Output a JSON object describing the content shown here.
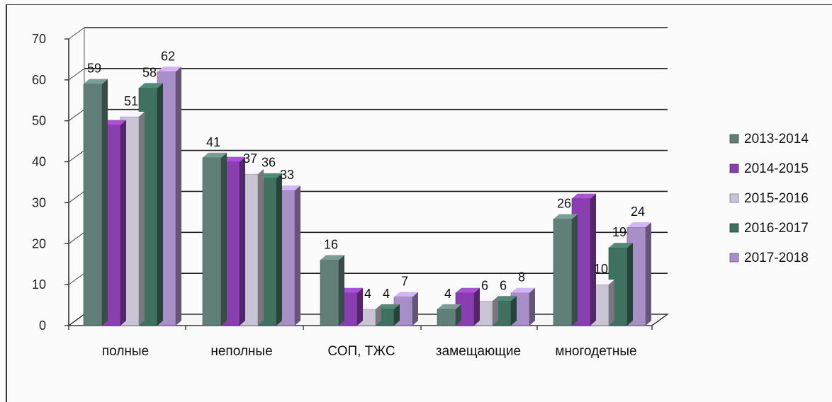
{
  "chart_data": {
    "type": "bar",
    "categories": [
      "полные",
      "неполные",
      "СОП, ТЖС",
      "замещающие",
      "многодетные"
    ],
    "series": [
      {
        "name": "2013-2014",
        "values": [
          59,
          41,
          16,
          4,
          26
        ],
        "color": "#5f7f78"
      },
      {
        "name": "2014-2015",
        "values": [
          49,
          40,
          8,
          8,
          31
        ],
        "color": "#8a3fb0"
      },
      {
        "name": "2015-2016",
        "values": [
          51,
          37,
          4,
          6,
          10
        ],
        "color": "#c8c4d4"
      },
      {
        "name": "2016-2017",
        "values": [
          58,
          36,
          4,
          6,
          19
        ],
        "color": "#3f7060"
      },
      {
        "name": "2017-2018",
        "values": [
          62,
          33,
          7,
          8,
          24
        ],
        "color": "#a98fc8"
      }
    ],
    "data_labels": [
      [
        "59",
        "",
        "51",
        "58",
        "62"
      ],
      [
        "41",
        "",
        "37",
        "36",
        "33"
      ],
      [
        "16",
        "",
        "4",
        "4",
        "7"
      ],
      [
        "4",
        "",
        "6",
        "6",
        "8"
      ],
      [
        "26",
        "",
        "10",
        "19",
        "24"
      ]
    ],
    "ylim": [
      0,
      70
    ],
    "yticks": [
      "0",
      "10",
      "20",
      "30",
      "40",
      "50",
      "60",
      "70"
    ],
    "grid": true,
    "legend_position": "right"
  }
}
